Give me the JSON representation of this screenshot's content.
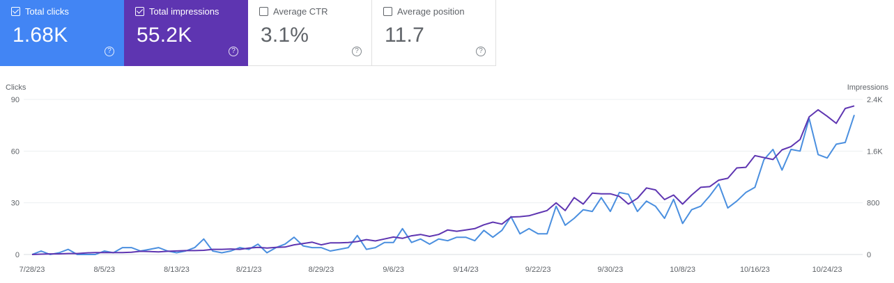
{
  "cards": [
    {
      "label": "Total clicks",
      "value": "1.68K",
      "checked": true,
      "color": "#4285f4"
    },
    {
      "label": "Total impressions",
      "value": "55.2K",
      "checked": true,
      "color": "#5e35b1"
    },
    {
      "label": "Average CTR",
      "value": "3.1%",
      "checked": false,
      "color": "#ffffff"
    },
    {
      "label": "Average position",
      "value": "11.7",
      "checked": false,
      "color": "#ffffff"
    }
  ],
  "help_glyph": "?",
  "chart_data": {
    "type": "line",
    "left_axis_title": "Clicks",
    "right_axis_title": "Impressions",
    "left_ylim": [
      0,
      90
    ],
    "right_ylim": [
      0,
      2400
    ],
    "left_ticks": [
      "0",
      "30",
      "60",
      "90"
    ],
    "right_ticks": [
      "0",
      "800",
      "1.6K",
      "2.4K"
    ],
    "x_tick_labels": [
      "7/28/23",
      "8/5/23",
      "8/13/23",
      "8/21/23",
      "8/29/23",
      "9/6/23",
      "9/14/23",
      "9/22/23",
      "9/30/23",
      "10/8/23",
      "10/16/23",
      "10/24/23"
    ],
    "x_tick_index": [
      0,
      8,
      16,
      24,
      32,
      40,
      48,
      56,
      64,
      72,
      80,
      88
    ],
    "grid": true,
    "series": [
      {
        "name": "Total clicks",
        "axis": "left",
        "color": "#4a8fdf",
        "values": [
          0,
          2,
          0,
          1,
          3,
          0,
          0,
          0,
          2,
          1,
          4,
          4,
          2,
          3,
          4,
          2,
          1,
          2,
          4,
          9,
          2,
          1,
          2,
          4,
          3,
          6,
          1,
          4,
          6,
          10,
          5,
          4,
          4,
          2,
          3,
          4,
          11,
          3,
          4,
          7,
          7,
          15,
          7,
          9,
          6,
          9,
          8,
          10,
          10,
          8,
          14,
          10,
          14,
          22,
          12,
          15,
          12,
          12,
          28,
          17,
          21,
          26,
          25,
          33,
          25,
          36,
          35,
          25,
          31,
          28,
          21,
          32,
          18,
          26,
          28,
          34,
          41,
          27,
          31,
          36,
          39,
          55,
          61,
          49,
          61,
          60,
          79,
          58,
          56,
          64,
          65,
          81
        ]
      },
      {
        "name": "Total impressions",
        "axis": "right",
        "color": "#5e35b1",
        "values": [
          0,
          5,
          10,
          10,
          15,
          15,
          25,
          30,
          30,
          30,
          30,
          35,
          50,
          45,
          40,
          50,
          55,
          60,
          60,
          65,
          80,
          80,
          85,
          80,
          100,
          110,
          100,
          110,
          115,
          150,
          170,
          190,
          150,
          180,
          180,
          185,
          200,
          230,
          210,
          240,
          270,
          250,
          290,
          310,
          280,
          310,
          380,
          360,
          380,
          400,
          460,
          500,
          470,
          580,
          585,
          600,
          640,
          680,
          800,
          680,
          880,
          780,
          950,
          940,
          940,
          900,
          780,
          870,
          1030,
          1000,
          850,
          920,
          780,
          920,
          1040,
          1050,
          1150,
          1180,
          1340,
          1350,
          1530,
          1500,
          1470,
          1620,
          1670,
          1780,
          2130,
          2240,
          2140,
          2030,
          2260,
          2300
        ]
      }
    ]
  }
}
